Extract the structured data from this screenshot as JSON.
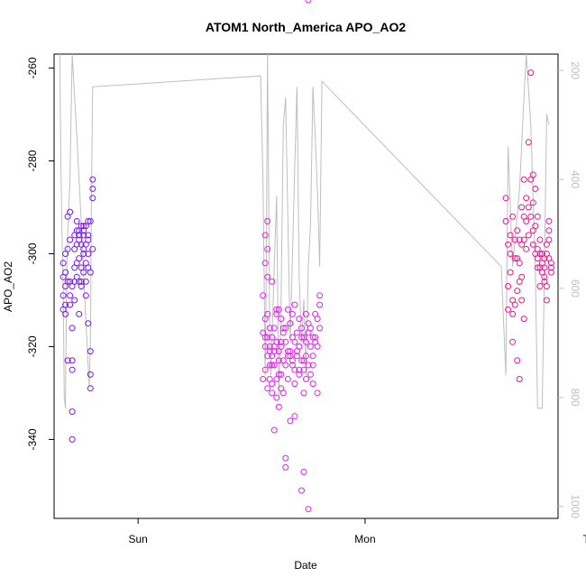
{
  "chart_data": {
    "type": "scatter",
    "title": "ATOM1 North_America APO_AO2",
    "xlabel": "Date",
    "ylabel": "APO_AO2",
    "x_ticks": [
      "Sun",
      "Mon",
      "Tue"
    ],
    "y_ticks": [
      -340,
      -320,
      -300,
      -280,
      -260
    ],
    "y_range": [
      -357,
      -257
    ],
    "y2_ticks": [
      200,
      400,
      600,
      800,
      1000
    ],
    "y2_range": [
      1022,
      170
    ],
    "x_range_days": [
      -0.37,
      1.85
    ],
    "grid": false,
    "legend": "none",
    "marker": "open-circle",
    "colors": {
      "flight1": "#7a14ff",
      "flight2": "#e61ef0",
      "flight3": "#f0148c",
      "altitude_line": "#bebebe",
      "axis": "#000000"
    },
    "series": [
      {
        "x_day_offset": [
          -0.33,
          -0.33,
          -0.33,
          -0.33,
          -0.32,
          -0.32,
          -0.32,
          -0.32,
          -0.32,
          -0.31,
          -0.31,
          -0.31,
          -0.31,
          -0.3,
          -0.3,
          -0.3,
          -0.3,
          -0.3,
          -0.29,
          -0.29,
          -0.29,
          -0.29,
          -0.29,
          -0.29,
          -0.28,
          -0.28,
          -0.28,
          -0.28,
          -0.28,
          -0.27,
          -0.27,
          -0.27,
          -0.27,
          -0.27,
          -0.26,
          -0.26,
          -0.26,
          -0.26,
          -0.26,
          -0.26,
          -0.25,
          -0.25,
          -0.25,
          -0.25,
          -0.25,
          -0.24,
          -0.24,
          -0.24,
          -0.24,
          -0.24,
          -0.24,
          -0.23,
          -0.23,
          -0.23,
          -0.23,
          -0.23,
          -0.22,
          -0.22,
          -0.22,
          -0.22,
          -0.22,
          -0.22,
          -0.21,
          -0.21,
          -0.21,
          -0.21,
          -0.21,
          -0.2,
          -0.2,
          -0.2,
          -0.2
        ],
        "y": [
          -302,
          -305,
          -309,
          -312,
          -300,
          -304,
          -307,
          -311,
          -313,
          -292,
          -299,
          -306,
          -323,
          -291,
          -297,
          -306,
          -309,
          -311,
          -316,
          -323,
          -325,
          -334,
          -340,
          -307,
          -303,
          -306,
          -310,
          -299,
          -296,
          -302,
          -305,
          -298,
          -295,
          -293,
          -296,
          -301,
          -306,
          -295,
          -313,
          -297,
          -294,
          -298,
          -303,
          -306,
          -307,
          -294,
          -299,
          -304,
          -296,
          -300,
          -295,
          -294,
          -298,
          -302,
          -306,
          -309,
          -297,
          -300,
          -303,
          -293,
          -296,
          -315,
          -321,
          -326,
          -329,
          -304,
          -293,
          -286,
          -288,
          -299,
          -284
        ]
      },
      {
        "x_day_offset": [
          0.55,
          0.55,
          0.55,
          0.56,
          0.56,
          0.56,
          0.56,
          0.56,
          0.57,
          0.57,
          0.57,
          0.57,
          0.57,
          0.58,
          0.58,
          0.58,
          0.58,
          0.59,
          0.59,
          0.59,
          0.59,
          0.6,
          0.6,
          0.6,
          0.6,
          0.61,
          0.61,
          0.61,
          0.61,
          0.62,
          0.62,
          0.62,
          0.62,
          0.63,
          0.63,
          0.63,
          0.64,
          0.64,
          0.64,
          0.65,
          0.65,
          0.65,
          0.66,
          0.66,
          0.66,
          0.67,
          0.67,
          0.67,
          0.68,
          0.68,
          0.68,
          0.69,
          0.69,
          0.69,
          0.7,
          0.7,
          0.71,
          0.71,
          0.71,
          0.72,
          0.72,
          0.72,
          0.73,
          0.73,
          0.73,
          0.74,
          0.74,
          0.74,
          0.75,
          0.75,
          0.75,
          0.76,
          0.76,
          0.77,
          0.77,
          0.77,
          0.78,
          0.78,
          0.79,
          0.79,
          0.8,
          0.8,
          0.8,
          0.56,
          0.57,
          0.58,
          0.59,
          0.6,
          0.61,
          0.62,
          0.63,
          0.64,
          0.65,
          0.66,
          0.67,
          0.68,
          0.69,
          0.7,
          0.71,
          0.72,
          0.73,
          0.74,
          0.75,
          0.76,
          0.77,
          0.78,
          0.79,
          0.57,
          0.59,
          0.61,
          0.63,
          0.65,
          0.67,
          0.69,
          0.71,
          0.73,
          0.75
        ],
        "y": [
          -327,
          -317,
          -309,
          -296,
          -302,
          -314,
          -318,
          -320,
          -293,
          -305,
          -313,
          -322,
          -329,
          -316,
          -320,
          -324,
          -327,
          -318,
          -322,
          -328,
          -330,
          -316,
          -320,
          -324,
          -338,
          -313,
          -319,
          -327,
          -331,
          -312,
          -321,
          -326,
          -333,
          -314,
          -320,
          -329,
          -317,
          -323,
          -330,
          -316,
          -319,
          -344,
          -312,
          -322,
          -327,
          -315,
          -321,
          -336,
          -313,
          -318,
          -324,
          -311,
          -319,
          -328,
          -317,
          -322,
          -314,
          -320,
          -326,
          -316,
          -323,
          -351,
          -318,
          -325,
          -330,
          -313,
          -319,
          -327,
          -317,
          -324,
          -355,
          -316,
          -326,
          -318,
          -322,
          -328,
          -313,
          -319,
          -314,
          -320,
          -309,
          -311,
          -316,
          -325,
          -318,
          -321,
          -324,
          -321,
          -319,
          -323,
          -326,
          -316,
          -346,
          -321,
          -315,
          -323,
          -335,
          -321,
          -325,
          -318,
          -347,
          -322,
          -315,
          -320,
          -324,
          -318,
          -330,
          -299,
          -306,
          -312,
          -319,
          -324,
          -322,
          -325,
          -320,
          -323
        ]
      },
      {
        "x_day_offset": [
          1.62,
          1.62,
          1.63,
          1.63,
          1.63,
          1.64,
          1.64,
          1.64,
          1.65,
          1.65,
          1.65,
          1.65,
          1.66,
          1.66,
          1.66,
          1.67,
          1.67,
          1.67,
          1.67,
          1.68,
          1.68,
          1.68,
          1.68,
          1.69,
          1.69,
          1.69,
          1.69,
          1.7,
          1.7,
          1.7,
          1.7,
          1.71,
          1.71,
          1.71,
          1.72,
          1.72,
          1.72,
          1.73,
          1.73,
          1.73,
          1.74,
          1.74,
          1.74,
          1.74,
          1.75,
          1.75,
          1.75,
          1.76,
          1.76,
          1.76,
          1.76,
          1.77,
          1.77,
          1.77,
          1.77,
          1.78,
          1.78,
          1.78,
          1.79,
          1.79,
          1.79,
          1.79,
          1.8,
          1.8,
          1.8,
          1.8,
          1.81,
          1.81,
          1.81,
          1.81,
          1.82,
          1.82,
          1.82
        ],
        "y": [
          -288,
          -293,
          -298,
          -307,
          -312,
          -296,
          -300,
          -304,
          -310,
          -319,
          -313,
          -292,
          -297,
          -301,
          -311,
          -295,
          -301,
          -308,
          -323,
          -297,
          -302,
          -306,
          -327,
          -290,
          -298,
          -305,
          -310,
          -284,
          -292,
          -297,
          -314,
          -288,
          -293,
          -299,
          -276,
          -290,
          -296,
          -261,
          -284,
          -292,
          -298,
          -283,
          -289,
          -295,
          -300,
          -286,
          -294,
          -301,
          -292,
          -299,
          -303,
          -297,
          -300,
          -303,
          -307,
          -300,
          -302,
          -304,
          -306,
          -301,
          -303,
          -305,
          -307,
          -310,
          -300,
          -298,
          -295,
          -293,
          -297,
          -301,
          -302,
          -303,
          -304
        ]
      },
      {
        "name": "altitude",
        "axis": "right",
        "x_day_offset": [
          -0.345,
          -0.34,
          -0.335,
          -0.33,
          -0.325,
          -0.32,
          -0.315,
          -0.31,
          -0.3,
          -0.29,
          -0.27,
          -0.25,
          -0.23,
          -0.215,
          -0.21,
          -0.205,
          -0.2,
          0.54,
          0.55,
          0.56,
          0.565,
          0.57,
          0.575,
          0.58,
          0.585,
          0.6,
          0.61,
          0.62,
          0.63,
          0.64,
          0.65,
          0.66,
          0.67,
          0.68,
          0.69,
          0.7,
          0.71,
          0.72,
          0.73,
          0.74,
          0.75,
          0.76,
          0.77,
          0.78,
          0.79,
          0.8,
          0.81,
          1.6,
          1.62,
          1.63,
          1.65,
          1.68,
          1.7,
          1.71,
          1.73,
          1.75,
          1.76,
          1.78,
          1.79,
          1.8,
          1.81,
          1.82
        ],
        "y": [
          170,
          380,
          500,
          600,
          800,
          820,
          600,
          500,
          400,
          170,
          320,
          480,
          660,
          780,
          700,
          420,
          230,
          210,
          400,
          760,
          560,
          170,
          420,
          700,
          760,
          560,
          430,
          800,
          620,
          300,
          250,
          480,
          700,
          540,
          380,
          230,
          580,
          700,
          620,
          760,
          560,
          480,
          230,
          320,
          420,
          560,
          220,
          560,
          760,
          340,
          560,
          420,
          250,
          170,
          300,
          560,
          820,
          820,
          560,
          280,
          300
        ]
      }
    ]
  }
}
